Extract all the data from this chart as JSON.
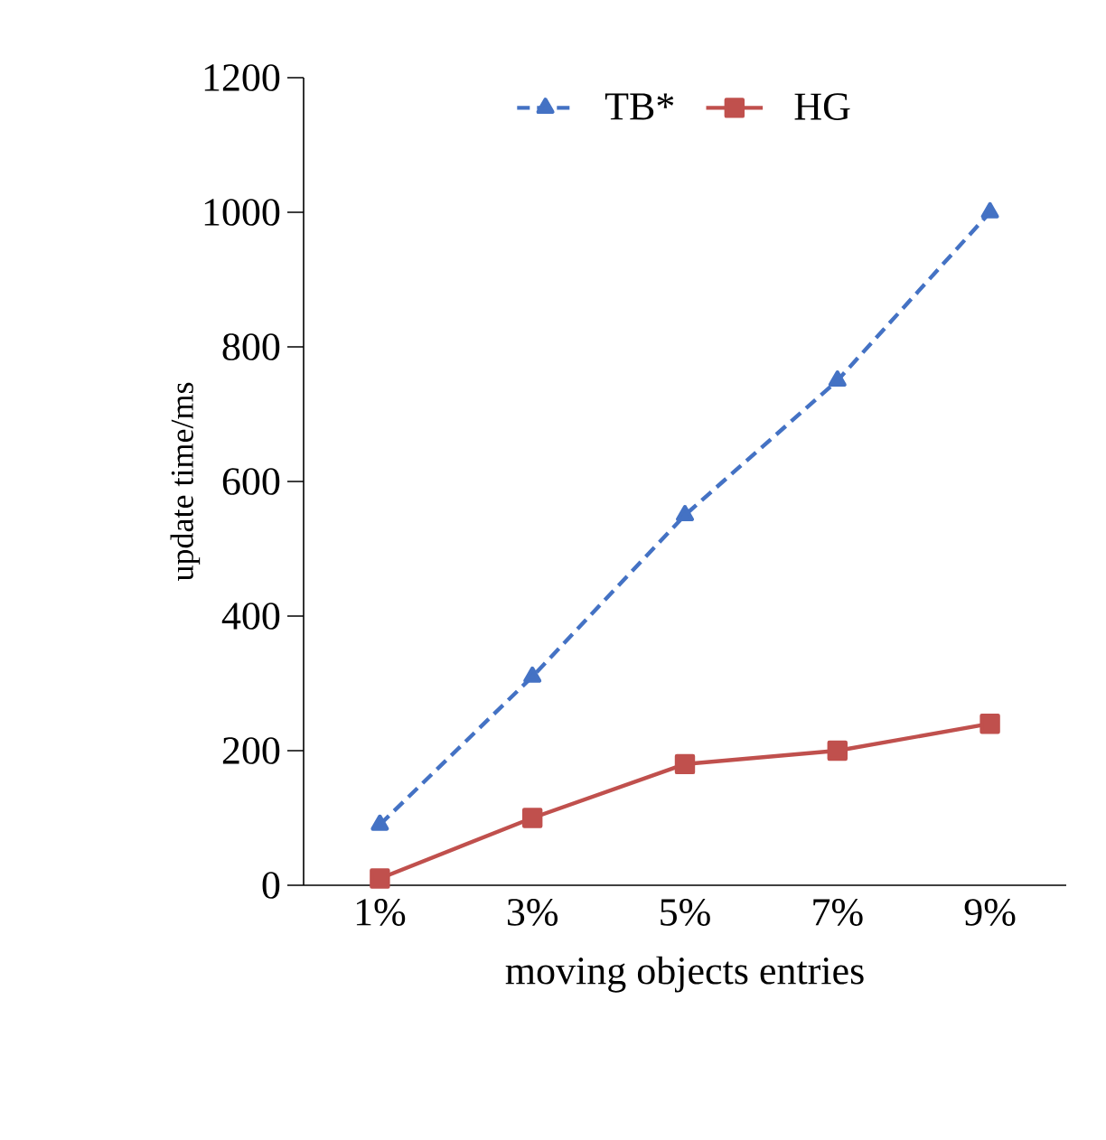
{
  "chart_data": {
    "type": "line",
    "xlabel": "moving objects entries",
    "ylabel": "update time/ms",
    "categories": [
      "1%",
      "3%",
      "5%",
      "7%",
      "9%"
    ],
    "series": [
      {
        "name": "TB*",
        "color": "#4472c4",
        "values": [
          90,
          310,
          550,
          750,
          1000
        ],
        "marker": "triangle",
        "line_style": "dashed"
      },
      {
        "name": "HG",
        "color": "#c0504d",
        "values": [
          10,
          100,
          180,
          200,
          240
        ],
        "marker": "square",
        "line_style": "solid"
      }
    ],
    "ylim": [
      0,
      1200
    ],
    "yticks": [
      0,
      200,
      400,
      600,
      800,
      1000,
      1200
    ],
    "grid": false,
    "legend": "top"
  }
}
